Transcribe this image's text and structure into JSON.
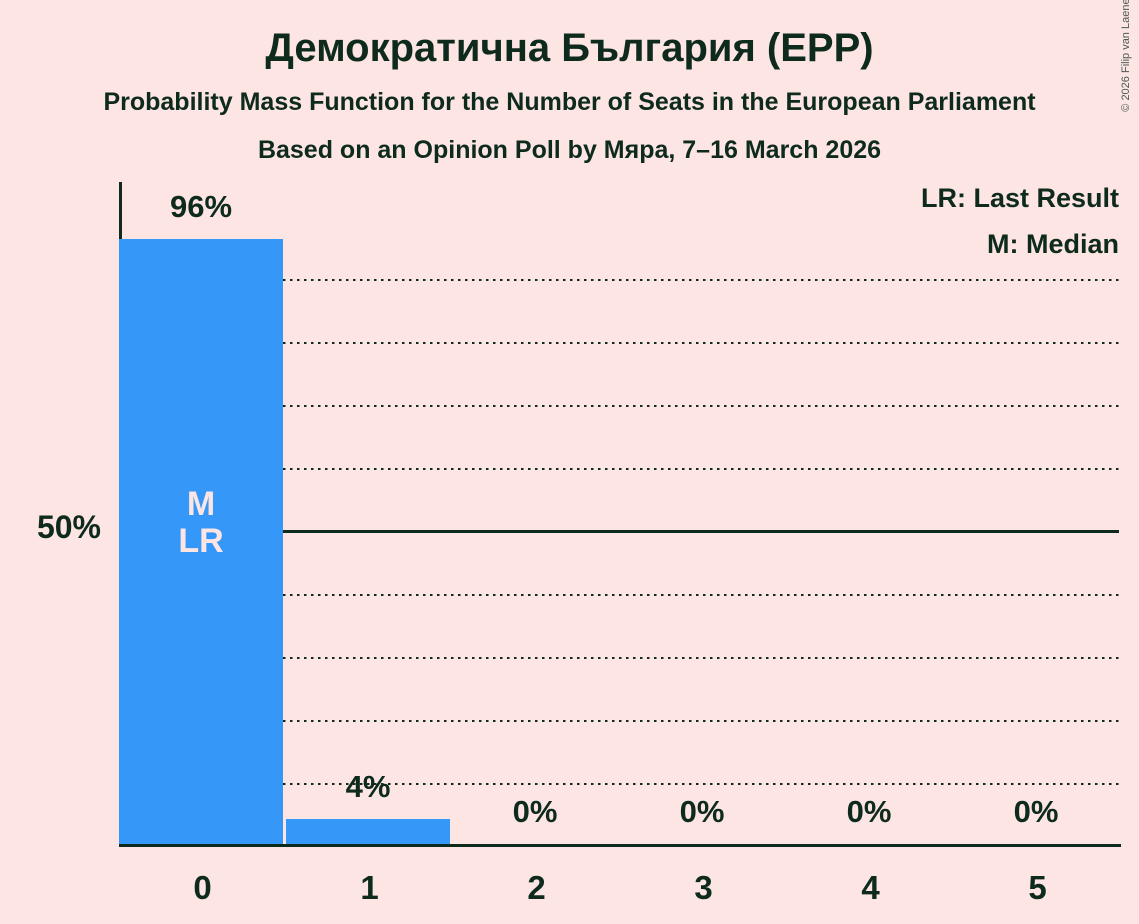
{
  "copyright": "© 2026 Filip van Laenen",
  "chart_data": {
    "type": "bar",
    "title": "Демократична България (EPP)",
    "subtitle": "Probability Mass Function for the Number of Seats in the European Parliament",
    "subtitle2": "Based on an Opinion Poll by Мяра, 7–16 March 2026",
    "categories": [
      "0",
      "1",
      "2",
      "3",
      "4",
      "5"
    ],
    "values": [
      96,
      4,
      0,
      0,
      0,
      0
    ],
    "value_labels": [
      "96%",
      "4%",
      "0%",
      "0%",
      "0%",
      "0%"
    ],
    "ylim": [
      0,
      100
    ],
    "y_tick_label": "50%",
    "y_gridlines_pct": [
      10,
      20,
      30,
      40,
      50,
      60,
      70,
      80,
      90
    ],
    "y_solid_pct": 50,
    "grid_style": "dotted horizontal lines every 10%, solid line at 50%",
    "legend": {
      "position": "top-right",
      "entries": [
        "LR: Last Result",
        "M: Median"
      ]
    },
    "bar_annotation": {
      "bar_index": 0,
      "lines": [
        "M",
        "LR"
      ]
    },
    "colors": {
      "bar": "#3598f8",
      "background": "#fce5e2",
      "text": "#0e2a1c",
      "annotation_text": "#fce5e2",
      "copyright": "#4d5a55"
    }
  }
}
